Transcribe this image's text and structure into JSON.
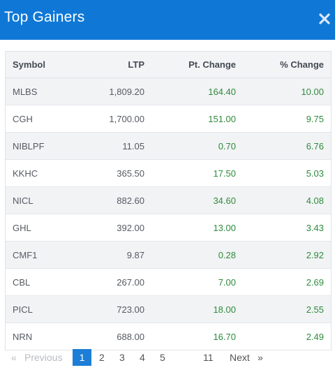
{
  "modal": {
    "title": "Top Gainers",
    "accent_color": "#0f78d6",
    "close_icon": "close-icon"
  },
  "table": {
    "headers": {
      "symbol": "Symbol",
      "ltp": "LTP",
      "pt_change": "Pt. Change",
      "pct_change": "% Change"
    },
    "rows": [
      {
        "symbol": "MLBS",
        "ltp": "1,809.20",
        "pt_change": "164.40",
        "pct_change": "10.00"
      },
      {
        "symbol": "CGH",
        "ltp": "1,700.00",
        "pt_change": "151.00",
        "pct_change": "9.75"
      },
      {
        "symbol": "NIBLPF",
        "ltp": "11.05",
        "pt_change": "0.70",
        "pct_change": "6.76"
      },
      {
        "symbol": "KKHC",
        "ltp": "365.50",
        "pt_change": "17.50",
        "pct_change": "5.03"
      },
      {
        "symbol": "NICL",
        "ltp": "882.60",
        "pt_change": "34.60",
        "pct_change": "4.08"
      },
      {
        "symbol": "GHL",
        "ltp": "392.00",
        "pt_change": "13.00",
        "pct_change": "3.43"
      },
      {
        "symbol": "CMF1",
        "ltp": "9.87",
        "pt_change": "0.28",
        "pct_change": "2.92"
      },
      {
        "symbol": "CBL",
        "ltp": "267.00",
        "pt_change": "7.00",
        "pct_change": "2.69"
      },
      {
        "symbol": "PICL",
        "ltp": "723.00",
        "pt_change": "18.00",
        "pct_change": "2.55"
      },
      {
        "symbol": "NRN",
        "ltp": "688.00",
        "pt_change": "16.70",
        "pct_change": "2.49"
      }
    ]
  },
  "pagination": {
    "first": "«",
    "previous": "Previous",
    "pages": [
      "1",
      "2",
      "3",
      "4",
      "5"
    ],
    "last_page": "11",
    "next": "Next",
    "end": "»",
    "current": "1"
  }
}
